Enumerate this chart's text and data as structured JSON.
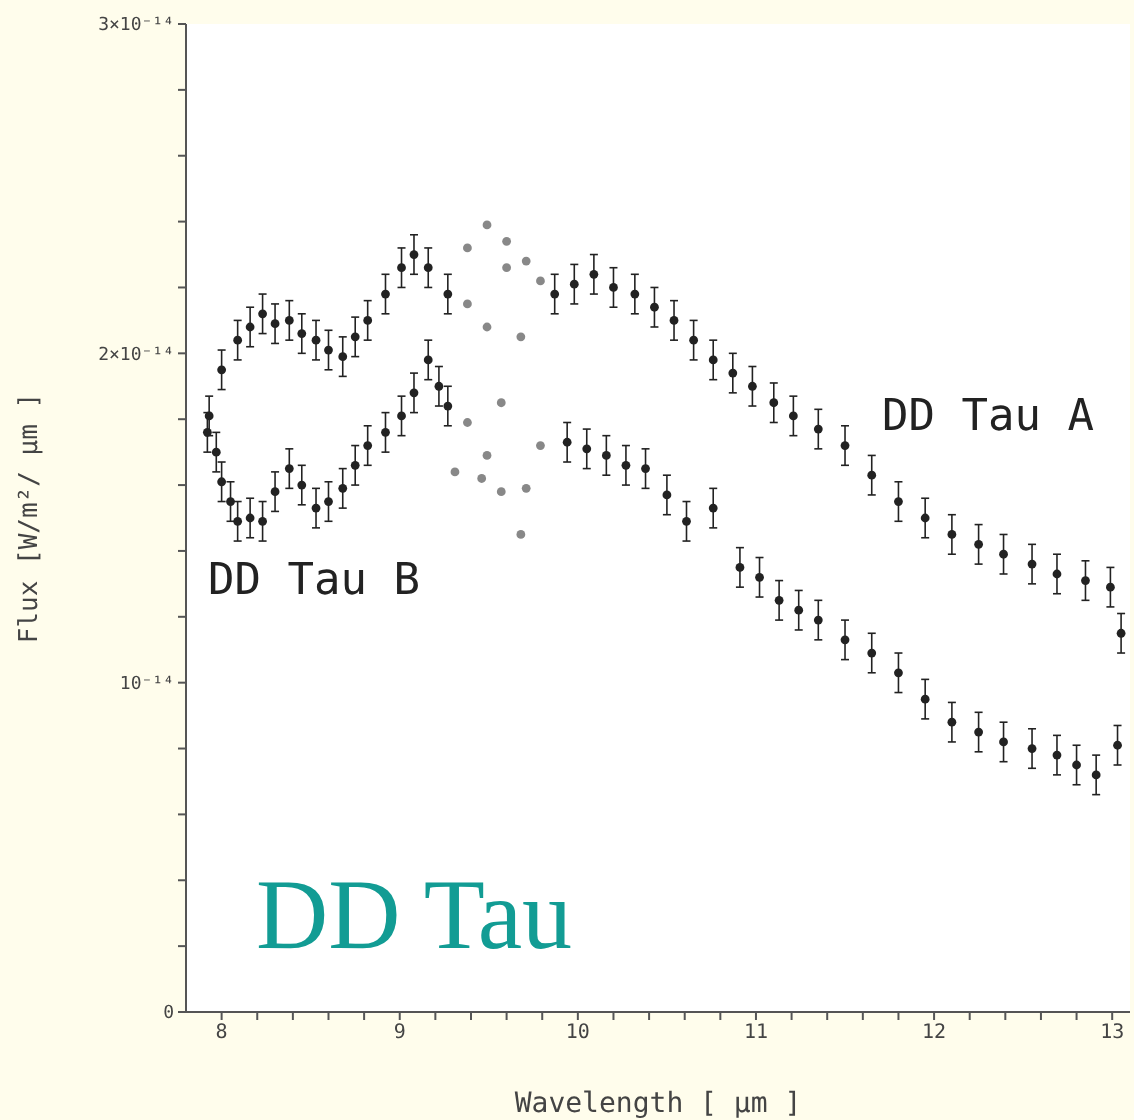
{
  "chart_data": {
    "type": "scatter",
    "title": "DD Tau",
    "xlabel": "Wavelength [ µm ]",
    "ylabel": "Flux [W/m²/ µm ]",
    "xlim": [
      7.8,
      13.1
    ],
    "ylim": [
      0,
      3e-14
    ],
    "xticks": [
      8,
      {
        "value": 8.2,
        "label": null
      },
      {
        "value": 8.4,
        "label": null
      },
      {
        "value": 8.6,
        "label": null
      },
      {
        "value": 8.8,
        "label": null
      },
      9,
      {
        "value": 9.2,
        "label": null
      },
      {
        "value": 9.4,
        "label": null
      },
      {
        "value": 9.6,
        "label": null
      },
      {
        "value": 9.8,
        "label": null
      },
      10,
      {
        "value": 10.2,
        "label": null
      },
      {
        "value": 10.4,
        "label": null
      },
      {
        "value": 10.6,
        "label": null
      },
      {
        "value": 10.8,
        "label": null
      },
      11,
      {
        "value": 11.2,
        "label": null
      },
      {
        "value": 11.4,
        "label": null
      },
      {
        "value": 11.6,
        "label": null
      },
      {
        "value": 11.8,
        "label": null
      },
      12,
      {
        "value": 12.2,
        "label": null
      },
      {
        "value": 12.4,
        "label": null
      },
      {
        "value": 12.6,
        "label": null
      },
      {
        "value": 12.8,
        "label": null
      },
      13
    ],
    "yticks": [
      0,
      {
        "value": 2e-15,
        "label": null
      },
      {
        "value": 4e-15,
        "label": null
      },
      {
        "value": 6e-15,
        "label": null
      },
      {
        "value": 8e-15,
        "label": null
      },
      {
        "value": 1e-14,
        "label": "10⁻¹⁴"
      },
      {
        "value": 1.2e-14,
        "label": null
      },
      {
        "value": 1.4e-14,
        "label": null
      },
      {
        "value": 1.6e-14,
        "label": null
      },
      {
        "value": 1.8e-14,
        "label": null
      },
      {
        "value": 2e-14,
        "label": "2×10⁻¹⁴"
      },
      {
        "value": 2.2e-14,
        "label": null
      },
      {
        "value": 2.4e-14,
        "label": null
      },
      {
        "value": 2.6e-14,
        "label": null
      },
      {
        "value": 2.8e-14,
        "label": null
      },
      {
        "value": 3e-14,
        "label": "3×10⁻¹⁴"
      }
    ],
    "marker": "circle",
    "series": [
      {
        "name": "DD Tau A",
        "color": "#222222",
        "x": [
          7.93,
          8.0,
          8.09,
          8.16,
          8.23,
          8.3,
          8.38,
          8.45,
          8.53,
          8.6,
          8.68,
          8.75,
          8.82,
          8.92,
          9.01,
          9.08,
          9.16,
          9.27,
          9.87,
          9.98,
          10.09,
          10.2,
          10.32,
          10.43,
          10.54,
          10.65,
          10.76,
          10.87,
          10.98,
          11.1,
          11.21,
          11.35,
          11.5,
          11.65,
          11.8,
          11.95,
          12.1,
          12.25,
          12.39,
          12.55,
          12.69,
          12.85,
          12.99,
          13.05
        ],
        "values": [
          1.81e-14,
          1.95e-14,
          2.04e-14,
          2.08e-14,
          2.12e-14,
          2.09e-14,
          2.1e-14,
          2.06e-14,
          2.04e-14,
          2.01e-14,
          1.99e-14,
          2.05e-14,
          2.1e-14,
          2.18e-14,
          2.26e-14,
          2.3e-14,
          2.26e-14,
          2.18e-14,
          2.18e-14,
          2.21e-14,
          2.24e-14,
          2.2e-14,
          2.18e-14,
          2.14e-14,
          2.1e-14,
          2.04e-14,
          1.98e-14,
          1.94e-14,
          1.9e-14,
          1.85e-14,
          1.81e-14,
          1.77e-14,
          1.72e-14,
          1.63e-14,
          1.55e-14,
          1.5e-14,
          1.45e-14,
          1.42e-14,
          1.39e-14,
          1.36e-14,
          1.33e-14,
          1.31e-14,
          1.29e-14,
          1.15e-14
        ],
        "errors": [
          6e-16,
          6e-16,
          6e-16,
          6e-16,
          6e-16,
          6e-16,
          6e-16,
          6e-16,
          6e-16,
          6e-16,
          6e-16,
          6e-16,
          6e-16,
          6e-16,
          6e-16,
          6e-16,
          6e-16,
          6e-16,
          6e-16,
          6e-16,
          6e-16,
          6e-16,
          6e-16,
          6e-16,
          6e-16,
          6e-16,
          6e-16,
          6e-16,
          6e-16,
          6e-16,
          6e-16,
          6e-16,
          6e-16,
          6e-16,
          6e-16,
          6e-16,
          6e-16,
          6e-16,
          6e-16,
          6e-16,
          6e-16,
          6e-16,
          6e-16,
          6e-16
        ]
      },
      {
        "name": "DD Tau B",
        "color": "#222222",
        "x": [
          7.92,
          7.97,
          8.0,
          8.05,
          8.09,
          8.16,
          8.23,
          8.3,
          8.38,
          8.45,
          8.53,
          8.6,
          8.68,
          8.75,
          8.82,
          8.92,
          9.01,
          9.08,
          9.16,
          9.22,
          9.27,
          9.94,
          10.05,
          10.16,
          10.27,
          10.38,
          10.5,
          10.61,
          10.76,
          10.91,
          11.02,
          11.13,
          11.24,
          11.35,
          11.5,
          11.65,
          11.8,
          11.95,
          12.1,
          12.25,
          12.39,
          12.55,
          12.69,
          12.8,
          12.91,
          13.03
        ],
        "values": [
          1.76e-14,
          1.7e-14,
          1.61e-14,
          1.55e-14,
          1.49e-14,
          1.5e-14,
          1.49e-14,
          1.58e-14,
          1.65e-14,
          1.6e-14,
          1.53e-14,
          1.55e-14,
          1.59e-14,
          1.66e-14,
          1.72e-14,
          1.76e-14,
          1.81e-14,
          1.88e-14,
          1.98e-14,
          1.9e-14,
          1.84e-14,
          1.73e-14,
          1.71e-14,
          1.69e-14,
          1.66e-14,
          1.65e-14,
          1.57e-14,
          1.49e-14,
          1.53e-14,
          1.35e-14,
          1.32e-14,
          1.25e-14,
          1.22e-14,
          1.19e-14,
          1.13e-14,
          1.09e-14,
          1.03e-14,
          9.5e-15,
          8.8e-15,
          8.5e-15,
          8.2e-15,
          8e-15,
          7.8e-15,
          7.5e-15,
          7.2e-15,
          8.1e-15
        ],
        "errors": [
          6e-16,
          6e-16,
          6e-16,
          6e-16,
          6e-16,
          6e-16,
          6e-16,
          6e-16,
          6e-16,
          6e-16,
          6e-16,
          6e-16,
          6e-16,
          6e-16,
          6e-16,
          6e-16,
          6e-16,
          6e-16,
          6e-16,
          6e-16,
          6e-16,
          6e-16,
          6e-16,
          6e-16,
          6e-16,
          6e-16,
          6e-16,
          6e-16,
          6e-16,
          6e-16,
          6e-16,
          6e-16,
          6e-16,
          6e-16,
          6e-16,
          6e-16,
          6e-16,
          6e-16,
          6e-16,
          6e-16,
          6e-16,
          6e-16,
          6e-16,
          6e-16,
          6e-16,
          6e-16
        ]
      },
      {
        "color": "#888888",
        "x": [
          9.38,
          9.38,
          9.49,
          9.49,
          9.6,
          9.6,
          9.68,
          9.71,
          9.79
        ],
        "values": [
          2.32e-14,
          2.15e-14,
          2.39e-14,
          2.08e-14,
          2.34e-14,
          2.26e-14,
          2.05e-14,
          2.28e-14,
          2.22e-14
        ]
      },
      {
        "color": "#888888",
        "x": [
          9.31,
          9.38,
          9.46,
          9.49,
          9.57,
          9.57,
          9.68,
          9.71,
          9.79
        ],
        "values": [
          1.64e-14,
          1.79e-14,
          1.62e-14,
          1.69e-14,
          1.58e-14,
          1.85e-14,
          1.45e-14,
          1.59e-14,
          1.72e-14
        ]
      }
    ]
  }
}
